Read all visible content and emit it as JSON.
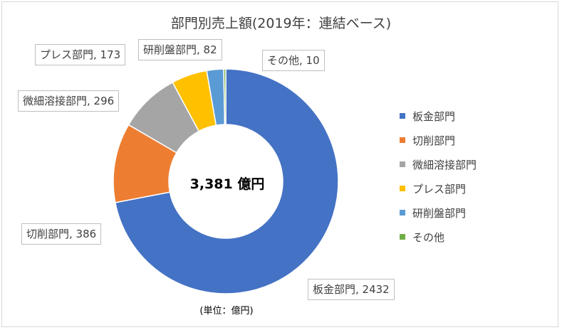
{
  "chart_data": {
    "type": "pie",
    "title": "部門別売上額(2019年：連結ベース)",
    "center_label": "3,381 億円",
    "unit_note": "(単位：億円)",
    "legend_position": "right",
    "categories": [
      "板金部門",
      "切削部門",
      "微細溶接部門",
      "プレス部門",
      "研削盤部門",
      "その他"
    ],
    "values": [
      2432,
      386,
      296,
      173,
      82,
      10
    ],
    "data_labels": [
      "板金部門, 2432",
      "切削部門, 386",
      "微細溶接部門, 296",
      "プレス部門, 173",
      "研削盤部門, 82",
      "その他, 10"
    ],
    "colors": [
      "#4472c4",
      "#ed7d31",
      "#a5a5a5",
      "#ffc000",
      "#5b9bd5",
      "#70ad47"
    ]
  }
}
